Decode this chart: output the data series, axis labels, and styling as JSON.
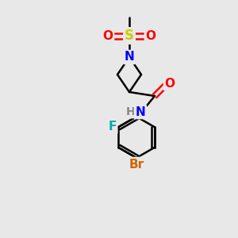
{
  "bg_color": "#e8e8e8",
  "line_color": "#000000",
  "bond_width": 1.8,
  "atom_colors": {
    "N": "#0000ff",
    "O": "#ff0000",
    "S": "#cccc00",
    "F": "#00aaaa",
    "Br": "#cc6600",
    "H": "#888888",
    "C": "#000000"
  },
  "font_size": 11,
  "fig_width": 3.0,
  "fig_height": 3.0,
  "dpi": 100
}
